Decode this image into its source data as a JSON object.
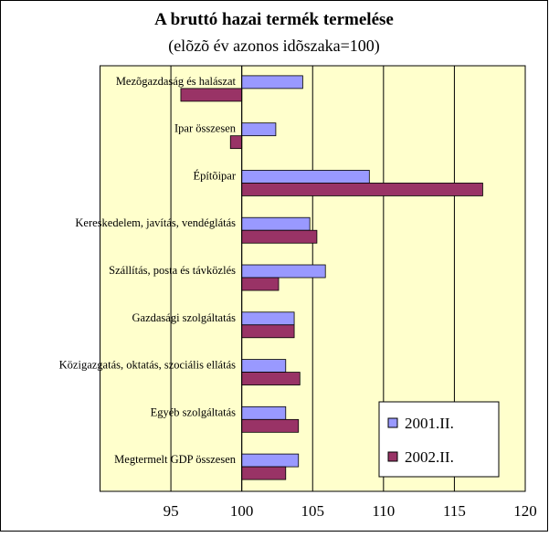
{
  "chart_data": {
    "type": "bar",
    "orientation": "horizontal",
    "title": "A bruttó hazai termék termelése",
    "subtitle": "(elõzõ év azonos idõszaka=100)",
    "categories": [
      "Mezõgazdaság és halászat",
      "Ipar összesen",
      "Építõipar",
      "Kereskedelem, javítás, vendéglátás",
      "Szállítás, posta és távközlés",
      "Gazdasági szolgáltatás",
      "Közigazgatás, oktatás, szociális ellátás",
      "Egyéb szolgáltatás",
      "Megtermelt GDP összesen"
    ],
    "series": [
      {
        "name": "2001.II.",
        "color": "#9999ff",
        "values": [
          104.3,
          102.4,
          109.0,
          104.8,
          105.9,
          103.7,
          103.1,
          103.1,
          104.0
        ]
      },
      {
        "name": "2002.II.",
        "color": "#993366",
        "values": [
          95.7,
          99.2,
          117.0,
          105.3,
          102.6,
          103.7,
          104.1,
          104.0,
          103.1
        ]
      }
    ],
    "baseline": 100,
    "xlim": [
      90,
      120
    ],
    "xticks": [
      95,
      100,
      105,
      110,
      115,
      120
    ],
    "grid": true,
    "legend": "lower right",
    "background": "#ffffcc"
  }
}
